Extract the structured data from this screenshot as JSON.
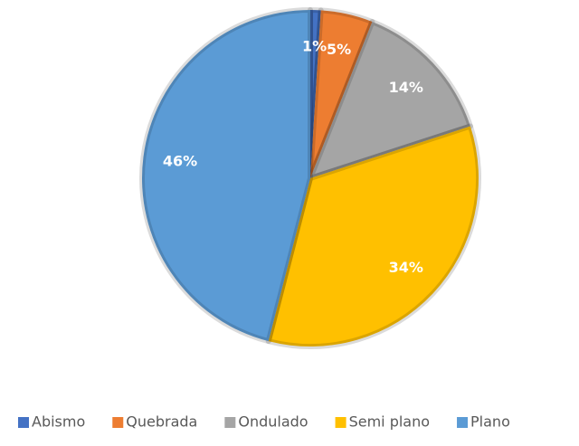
{
  "chart_data": {
    "type": "pie",
    "categories": [
      "Abismo",
      "Quebrada",
      "Ondulado",
      "Semi plano",
      "Plano"
    ],
    "values": [
      1,
      5,
      14,
      34,
      46
    ],
    "value_labels": [
      "1%",
      "5%",
      "14%",
      "34%",
      "46%"
    ],
    "colors": [
      "#4472c4",
      "#ed7d31",
      "#a5a5a5",
      "#ffc000",
      "#5b9bd5"
    ],
    "legend": "bottom"
  }
}
